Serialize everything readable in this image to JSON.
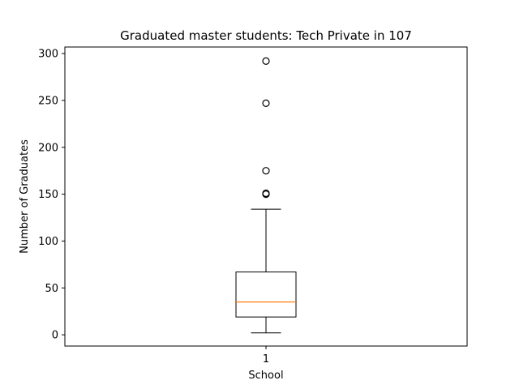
{
  "chart_data": {
    "type": "box",
    "title": "Graduated master students: Tech Private in 107",
    "xlabel": "School",
    "ylabel": "Number of Graduates",
    "categories": [
      "1"
    ],
    "ylim": [
      -12,
      307
    ],
    "yticks": [
      0,
      50,
      100,
      150,
      200,
      250,
      300
    ],
    "grid": false,
    "series": [
      {
        "whisker_low": 2,
        "q1": 19,
        "median": 35,
        "q3": 67,
        "whisker_high": 134,
        "outliers": [
          150,
          151,
          175,
          247,
          292
        ]
      }
    ],
    "colors": {
      "median": "#ff7f0e",
      "box": "#000000",
      "axes": "#000000",
      "background": "#ffffff"
    }
  }
}
